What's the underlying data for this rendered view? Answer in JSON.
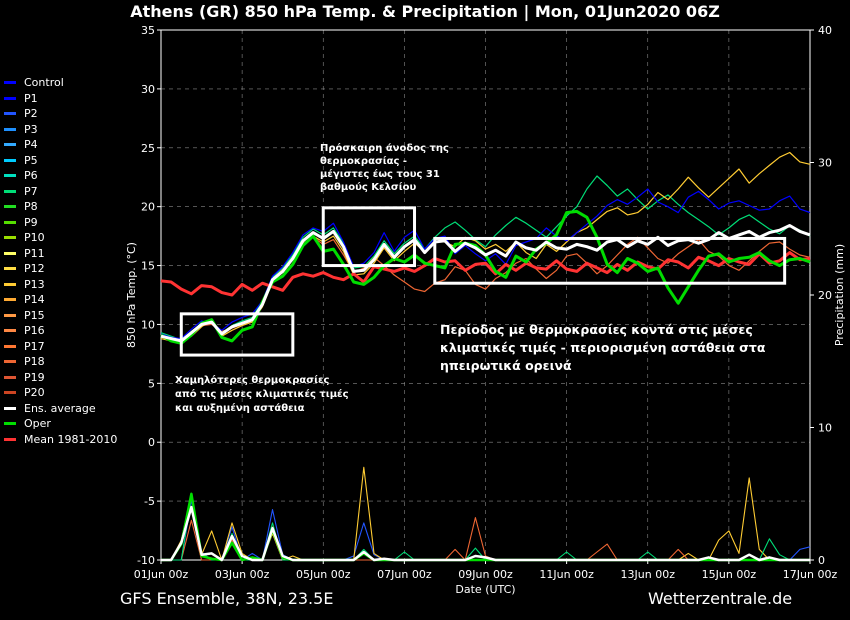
{
  "title": "Athens  (GR)  850 hPa Temp. & Precipitation | Mon, 01Jun2020 06Z",
  "footer": {
    "left": "GFS Ensemble, 38N, 23.5E",
    "right": "Wetterzentrale.de"
  },
  "annotations": {
    "cold": "Χαμηλότερες θερμοκρασίες από τις μέσες κλιματικές τιμές και αυξημένη αστάθεια",
    "rise": "Πρόσκαιρη άνοδος της θερμοκρασίας - μέγιστες έως τους 31 βαθμούς Κελσίου",
    "normal": "Περίοδος με θερμοκρασίες κοντά στις μέσες κλιματικές τιμές - περιορισμένη αστάθεια στα ηπειρωτικά ορεινά"
  },
  "chart_data": {
    "type": "line",
    "xlabel": "Date (UTC)",
    "ylabel": "850 hPa Temp. (°C)",
    "y2label": "Precipitation (mm)",
    "ylim": [
      -10,
      35
    ],
    "y2lim": [
      0,
      40
    ],
    "xlim_hours": [
      0,
      384
    ],
    "x_tick_labels": [
      "01Jun 00z",
      "03Jun 00z",
      "05Jun 00z",
      "07Jun 00z",
      "09Jun 00z",
      "11Jun 00z",
      "13Jun 00z",
      "15Jun 00z",
      "17Jun 00z"
    ],
    "y_ticks": [
      35,
      30,
      25,
      20,
      15,
      10,
      5,
      0,
      -5,
      -10
    ],
    "y2_ticks": [
      40,
      30,
      20,
      10,
      0
    ],
    "grid": true,
    "legend_position": "left",
    "legend": [
      {
        "name": "Control",
        "color": "#0000ff"
      },
      {
        "name": "P1",
        "color": "#0000ff"
      },
      {
        "name": "P2",
        "color": "#2255ff"
      },
      {
        "name": "P3",
        "color": "#1e90ff"
      },
      {
        "name": "P4",
        "color": "#33aaff"
      },
      {
        "name": "P5",
        "color": "#00ccff"
      },
      {
        "name": "P6",
        "color": "#00e0c0"
      },
      {
        "name": "P7",
        "color": "#00dd77"
      },
      {
        "name": "P8",
        "color": "#22dd22"
      },
      {
        "name": "P9",
        "color": "#55dd00"
      },
      {
        "name": "P10",
        "color": "#99dd00"
      },
      {
        "name": "P11",
        "color": "#ffff66"
      },
      {
        "name": "P12",
        "color": "#ffdd44"
      },
      {
        "name": "P13",
        "color": "#ffcc33"
      },
      {
        "name": "P14",
        "color": "#ffaa33"
      },
      {
        "name": "P15",
        "color": "#ff9944"
      },
      {
        "name": "P16",
        "color": "#ff8844"
      },
      {
        "name": "P17",
        "color": "#ff7733"
      },
      {
        "name": "P18",
        "color": "#ee6633"
      },
      {
        "name": "P19",
        "color": "#dd5533"
      },
      {
        "name": "P20",
        "color": "#cc4422"
      },
      {
        "name": "Ens. average",
        "color": "#ffffff"
      },
      {
        "name": "Oper",
        "color": "#00dd00"
      },
      {
        "name": "Mean 1981-2010",
        "color": "#ff3333"
      }
    ],
    "series": [
      {
        "key": "mean",
        "color": "#ff3333",
        "step": 6,
        "values": [
          13.7,
          13.6,
          13.0,
          12.6,
          13.3,
          13.2,
          12.7,
          12.5,
          13.4,
          12.9,
          13.5,
          13.2,
          12.9,
          14.0,
          14.3,
          14.1,
          14.4,
          14.0,
          13.8,
          14.3,
          13.6,
          14.9,
          14.7,
          14.5,
          14.8,
          14.5,
          15.0,
          15.6,
          15.3,
          15.4,
          14.6,
          15.1,
          15.2,
          14.3,
          15.1,
          14.6,
          15.2,
          14.8,
          14.7,
          15.4,
          14.7,
          14.5,
          15.2,
          14.8,
          14.4,
          15.1,
          14.6,
          15.3,
          14.9,
          14.7,
          15.5,
          15.3,
          14.8,
          15.7,
          15.4,
          15.0,
          15.6,
          15.3,
          15.1,
          16.0,
          15.2,
          15.4,
          16.1,
          15.5,
          15.6
        ]
      },
      {
        "key": "ens_avg",
        "color": "#ffffff",
        "step": 6,
        "values": [
          9.0,
          8.8,
          8.6,
          9.3,
          10.0,
          10.2,
          9.2,
          9.8,
          10.1,
          10.4,
          11.7,
          13.8,
          14.5,
          15.6,
          17.1,
          17.8,
          17.3,
          17.9,
          16.6,
          14.5,
          14.6,
          15.5,
          16.8,
          15.7,
          16.6,
          17.2,
          16.1,
          17.0,
          17.1,
          16.2,
          16.9,
          16.5,
          15.9,
          16.3,
          15.8,
          17.0,
          16.5,
          16.3,
          17.0,
          16.5,
          16.4,
          16.8,
          16.6,
          16.3,
          17.0,
          17.2,
          16.6,
          17.1,
          16.8,
          17.4,
          16.7,
          17.1,
          17.2,
          16.9,
          17.2,
          17.8,
          17.3,
          17.6,
          17.9,
          17.4,
          17.8,
          18.0,
          18.4,
          17.9,
          17.6
        ]
      },
      {
        "key": "oper",
        "color": "#00dd00",
        "step": 6,
        "values": [
          9.1,
          8.6,
          8.4,
          9.1,
          10.1,
          10.4,
          8.9,
          8.6,
          9.5,
          9.8,
          11.9,
          13.6,
          14.1,
          15.1,
          16.7,
          17.5,
          16.2,
          16.4,
          15.1,
          13.6,
          13.4,
          14.0,
          15.0,
          15.6,
          15.3,
          15.9,
          15.2,
          15.0,
          14.8,
          16.8,
          16.9,
          16.7,
          15.9,
          14.5,
          14.0,
          15.8,
          15.3,
          16.4,
          16.9,
          17.6,
          19.5,
          19.6,
          19.1,
          17.4,
          15.1,
          14.4,
          15.6,
          15.2,
          14.5,
          14.8,
          13.1,
          11.8,
          13.2,
          14.6,
          15.8,
          16.0,
          15.3,
          15.6,
          15.7,
          16.1,
          15.4,
          15.0,
          15.5,
          15.6,
          15.3
        ]
      },
      {
        "key": "control",
        "color": "#0000ff",
        "step": 6,
        "values": [
          9.2,
          8.9,
          8.8,
          9.6,
          10.3,
          10.1,
          9.5,
          10.2,
          10.6,
          10.9,
          12.0,
          14.1,
          14.9,
          16.1,
          17.6,
          18.2,
          17.9,
          18.6,
          17.0,
          14.9,
          15.2,
          16.1,
          17.8,
          16.2,
          17.4,
          18.0,
          16.4,
          17.3,
          17.5,
          16.0,
          16.7,
          16.0,
          15.4,
          16.0,
          15.1,
          16.7,
          17.0,
          17.3,
          18.2,
          17.5,
          17.1,
          17.8,
          18.5,
          19.2,
          20.1,
          20.6,
          20.2,
          20.8,
          21.5,
          20.4,
          20.0,
          19.5,
          20.8,
          21.3,
          20.6,
          19.8,
          20.3,
          20.5,
          20.1,
          19.7,
          19.8,
          20.5,
          20.9,
          19.8,
          19.5
        ]
      },
      {
        "key": "p12",
        "color": "#ffcc33",
        "step": 6,
        "values": [
          8.8,
          8.6,
          8.5,
          9.0,
          9.8,
          10.4,
          9.0,
          9.5,
          9.9,
          10.2,
          11.5,
          13.6,
          14.2,
          15.2,
          16.8,
          17.5,
          17.0,
          17.5,
          16.2,
          14.2,
          14.3,
          15.2,
          16.5,
          15.4,
          16.2,
          16.9,
          16.2,
          17.1,
          17.0,
          16.6,
          17.4,
          17.1,
          16.4,
          16.8,
          16.2,
          17.0,
          16.1,
          15.6,
          16.8,
          16.2,
          17.0,
          17.8,
          18.2,
          18.9,
          19.6,
          19.9,
          19.3,
          19.5,
          20.2,
          21.2,
          20.6,
          21.5,
          22.5,
          21.6,
          20.8,
          21.6,
          22.4,
          23.2,
          22.0,
          22.8,
          23.5,
          24.2,
          24.6,
          23.8,
          23.6
        ]
      },
      {
        "key": "p18",
        "color": "#ee6633",
        "step": 6,
        "values": [
          9.1,
          8.7,
          8.4,
          9.2,
          9.9,
          10.0,
          9.4,
          9.7,
          10.0,
          10.3,
          11.6,
          13.9,
          14.7,
          15.8,
          16.9,
          17.4,
          16.8,
          17.2,
          15.9,
          14.4,
          14.8,
          15.7,
          15.0,
          14.2,
          13.6,
          13.0,
          12.8,
          13.5,
          13.8,
          14.9,
          14.6,
          13.4,
          13.0,
          13.9,
          14.4,
          15.2,
          15.6,
          14.7,
          13.9,
          14.6,
          15.8,
          16.0,
          15.2,
          14.3,
          15.0,
          15.9,
          16.8,
          17.4,
          16.5,
          15.6,
          15.2,
          16.0,
          16.6,
          17.2,
          16.2,
          15.8,
          15.0,
          14.6,
          15.4,
          16.2,
          16.9,
          17.0,
          16.4,
          15.9,
          15.7
        ]
      },
      {
        "key": "p7",
        "color": "#00dd77",
        "step": 6,
        "values": [
          9.3,
          9.0,
          8.7,
          9.4,
          10.1,
          10.3,
          9.3,
          9.9,
          10.3,
          10.6,
          12.0,
          14.0,
          14.8,
          15.9,
          17.4,
          18.1,
          17.6,
          18.2,
          16.9,
          14.8,
          14.9,
          15.8,
          17.1,
          16.0,
          16.9,
          17.5,
          16.4,
          17.4,
          18.2,
          18.7,
          18.0,
          17.2,
          16.6,
          17.6,
          18.4,
          19.1,
          18.6,
          18.0,
          17.4,
          18.3,
          19.2,
          20.0,
          21.5,
          22.6,
          21.8,
          20.9,
          21.5,
          20.6,
          19.8,
          20.5,
          21.0,
          20.2,
          19.5,
          18.9,
          18.3,
          17.6,
          18.2,
          18.9,
          19.3,
          18.7,
          18.1,
          17.7,
          18.4,
          18.0,
          17.5
        ]
      }
    ],
    "precip_series": [
      {
        "key": "p_control",
        "color": "#2255ff",
        "values": [
          {
            "x": 18,
            "y": 4.5
          },
          {
            "x": 24,
            "y": 0.6
          },
          {
            "x": 42,
            "y": 2.5
          },
          {
            "x": 54,
            "y": 0.5
          },
          {
            "x": 66,
            "y": 3.8
          },
          {
            "x": 72,
            "y": 0.4
          },
          {
            "x": 114,
            "y": 0.3
          },
          {
            "x": 120,
            "y": 2.8
          },
          {
            "x": 126,
            "y": 0.4
          },
          {
            "x": 378,
            "y": 0.8
          },
          {
            "x": 384,
            "y": 1.0
          }
        ]
      },
      {
        "key": "p_p12",
        "color": "#ffcc33",
        "values": [
          {
            "x": 12,
            "y": 1.5
          },
          {
            "x": 18,
            "y": 5.0
          },
          {
            "x": 24,
            "y": 0.4
          },
          {
            "x": 30,
            "y": 2.2
          },
          {
            "x": 42,
            "y": 2.8
          },
          {
            "x": 48,
            "y": 0.5
          },
          {
            "x": 66,
            "y": 2.0
          },
          {
            "x": 78,
            "y": 0.3
          },
          {
            "x": 120,
            "y": 7.0
          },
          {
            "x": 126,
            "y": 0.5
          },
          {
            "x": 312,
            "y": 0.5
          },
          {
            "x": 330,
            "y": 1.5
          },
          {
            "x": 336,
            "y": 2.2
          },
          {
            "x": 342,
            "y": 0.5
          },
          {
            "x": 348,
            "y": 6.2
          },
          {
            "x": 354,
            "y": 0.8
          }
        ]
      },
      {
        "key": "p_p18",
        "color": "#ee6633",
        "values": [
          {
            "x": 18,
            "y": 3.0
          },
          {
            "x": 42,
            "y": 1.5
          },
          {
            "x": 66,
            "y": 2.5
          },
          {
            "x": 174,
            "y": 0.8
          },
          {
            "x": 186,
            "y": 3.2
          },
          {
            "x": 192,
            "y": 0.3
          },
          {
            "x": 258,
            "y": 0.6
          },
          {
            "x": 264,
            "y": 1.2
          },
          {
            "x": 306,
            "y": 0.8
          }
        ]
      },
      {
        "key": "p_p7",
        "color": "#00dd77",
        "values": [
          {
            "x": 18,
            "y": 4.8
          },
          {
            "x": 24,
            "y": 0.5
          },
          {
            "x": 42,
            "y": 2.0
          },
          {
            "x": 66,
            "y": 2.8
          },
          {
            "x": 120,
            "y": 0.8
          },
          {
            "x": 144,
            "y": 0.6
          },
          {
            "x": 186,
            "y": 0.9
          },
          {
            "x": 240,
            "y": 0.6
          },
          {
            "x": 288,
            "y": 0.6
          },
          {
            "x": 360,
            "y": 1.6
          },
          {
            "x": 366,
            "y": 0.4
          }
        ]
      },
      {
        "key": "p_oper",
        "color": "#00dd00",
        "values": [
          {
            "x": 12,
            "y": 1.2
          },
          {
            "x": 18,
            "y": 5.0
          },
          {
            "x": 24,
            "y": 0.3
          },
          {
            "x": 30,
            "y": 0.1
          },
          {
            "x": 42,
            "y": 1.3
          },
          {
            "x": 54,
            "y": 0.2
          },
          {
            "x": 66,
            "y": 2.3
          },
          {
            "x": 72,
            "y": 0.2
          },
          {
            "x": 120,
            "y": 0.5
          }
        ]
      },
      {
        "key": "p_avg",
        "color": "#ffffff",
        "values": [
          {
            "x": 12,
            "y": 1.3
          },
          {
            "x": 18,
            "y": 4.0
          },
          {
            "x": 24,
            "y": 0.4
          },
          {
            "x": 30,
            "y": 0.5
          },
          {
            "x": 42,
            "y": 1.8
          },
          {
            "x": 48,
            "y": 0.3
          },
          {
            "x": 66,
            "y": 2.4
          },
          {
            "x": 72,
            "y": 0.3
          },
          {
            "x": 120,
            "y": 0.6
          },
          {
            "x": 132,
            "y": 0.1
          },
          {
            "x": 186,
            "y": 0.3
          },
          {
            "x": 192,
            "y": 0.2
          },
          {
            "x": 324,
            "y": 0.2
          },
          {
            "x": 348,
            "y": 0.4
          },
          {
            "x": 360,
            "y": 0.2
          }
        ]
      }
    ]
  }
}
